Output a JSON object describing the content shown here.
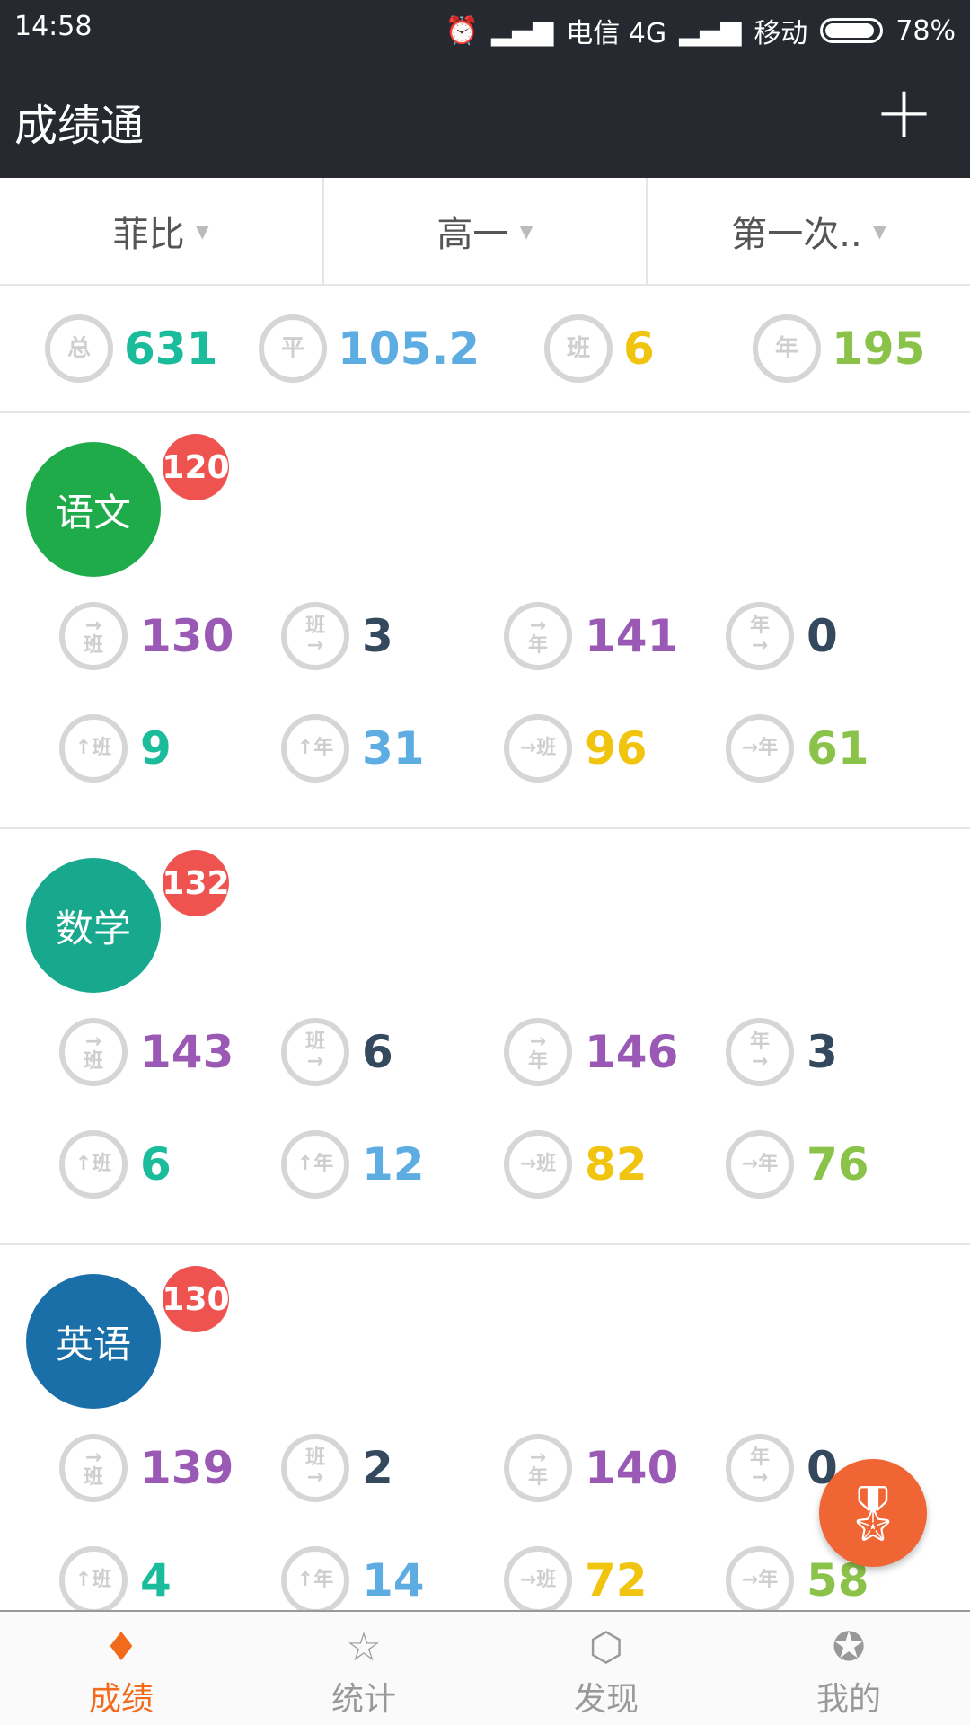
{
  "status": {
    "time": "14:58",
    "carrier1": "电信 4G",
    "carrier2": "移动",
    "battery": "78%",
    "battery_level": 78
  },
  "appbar": {
    "title": "成绩通",
    "add": "+"
  },
  "filters": [
    {
      "label": "菲比"
    },
    {
      "label": "高一"
    },
    {
      "label": "第一次.."
    }
  ],
  "summary": [
    {
      "icon": "总",
      "value": "631",
      "color": "#1abc9c"
    },
    {
      "icon": "平",
      "value": "105.2",
      "color": "#5dade2"
    },
    {
      "icon": "班",
      "value": "6",
      "color": "#f1c40f"
    },
    {
      "icon": "年",
      "value": "195",
      "color": "#8bc34a"
    }
  ],
  "stat_icons": [
    "→\n班",
    "班\n→",
    "→\n年",
    "年\n→",
    "↑班",
    "↑年",
    "→班",
    "→年"
  ],
  "stat_colors": [
    "#9b59b6",
    "#34495e",
    "#9b59b6",
    "#34495e",
    "#1abc9c",
    "#5dade2",
    "#f1c40f",
    "#8bc34a"
  ],
  "subjects": [
    {
      "name": "语文",
      "score": "120",
      "color": "#1fab4a",
      "stats": [
        "130",
        "3",
        "141",
        "0",
        "9",
        "31",
        "96",
        "61"
      ]
    },
    {
      "name": "数学",
      "score": "132",
      "color": "#17a88e",
      "stats": [
        "143",
        "6",
        "146",
        "3",
        "6",
        "12",
        "82",
        "76"
      ]
    },
    {
      "name": "英语",
      "score": "130",
      "color": "#1a6fa8",
      "stats": [
        "139",
        "2",
        "140",
        "0",
        "4",
        "14",
        "72",
        "58"
      ]
    }
  ],
  "fab": {
    "icon": "award-icon"
  },
  "nav": [
    {
      "label": "成绩",
      "icon": "♦"
    },
    {
      "label": "统计",
      "icon": "☆"
    },
    {
      "label": "发现",
      "icon": "⬡"
    },
    {
      "label": "我的",
      "icon": "✪"
    }
  ]
}
